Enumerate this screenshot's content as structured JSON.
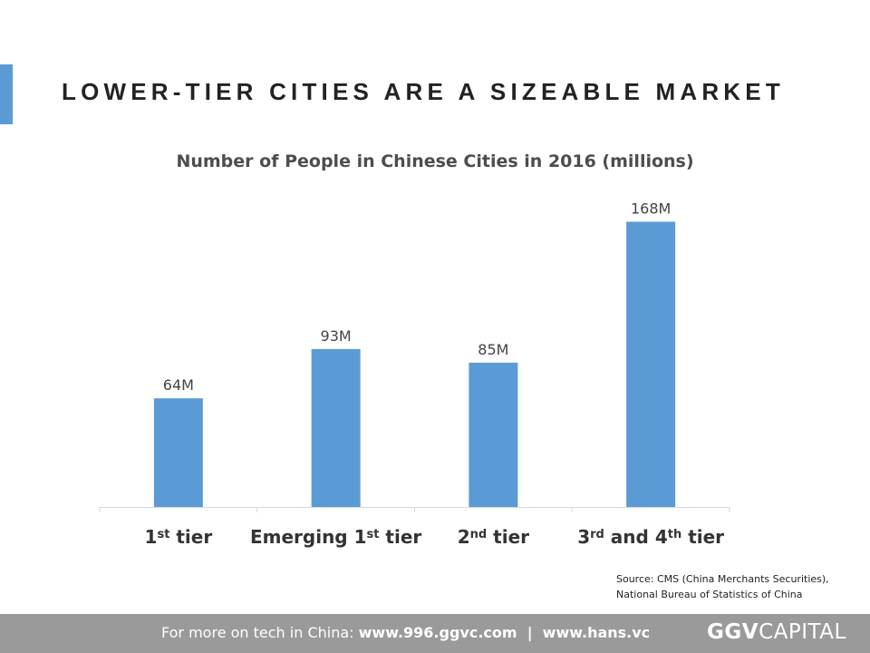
{
  "slide": {
    "title": "LOWER-TIER CITIES ARE A SIZEABLE MARKET",
    "accent_color": "#5b9bd5"
  },
  "chart_data": {
    "type": "bar",
    "title": "Number of People in Chinese Cities in 2016 (millions)",
    "categories": [
      "1st tier",
      "Emerging 1st tier",
      "2nd tier",
      "3rd and 4th tier"
    ],
    "category_labels": [
      {
        "parts": [
          {
            "t": "1"
          },
          {
            "t": "st",
            "sup": true
          },
          {
            "t": " tier"
          }
        ]
      },
      {
        "parts": [
          {
            "t": "Emerging 1"
          },
          {
            "t": "st",
            "sup": true
          },
          {
            "t": " tier"
          }
        ]
      },
      {
        "parts": [
          {
            "t": "2"
          },
          {
            "t": "nd",
            "sup": true
          },
          {
            "t": " tier"
          }
        ]
      },
      {
        "parts": [
          {
            "t": "3"
          },
          {
            "t": "rd",
            "sup": true
          },
          {
            "t": " and 4"
          },
          {
            "t": "th",
            "sup": true
          },
          {
            "t": " tier"
          }
        ]
      }
    ],
    "values": [
      64,
      93,
      85,
      168
    ],
    "data_labels": [
      "64M",
      "93M",
      "85M",
      "168M"
    ],
    "xlabel": "",
    "ylabel": "",
    "ylim": [
      0,
      180
    ],
    "grid": false,
    "bar_color": "#5b9bd5"
  },
  "source": {
    "line1": "Source: CMS (China Merchants Securities),",
    "line2": "National Bureau of Statistics of China"
  },
  "footer": {
    "prefix": "For more on tech in China: ",
    "link1": "www.996.ggvc.com",
    "separator": "  |  ",
    "link2": "www.hans.vc",
    "brand_bold": "GGV",
    "brand_light": "CAPITAL"
  }
}
